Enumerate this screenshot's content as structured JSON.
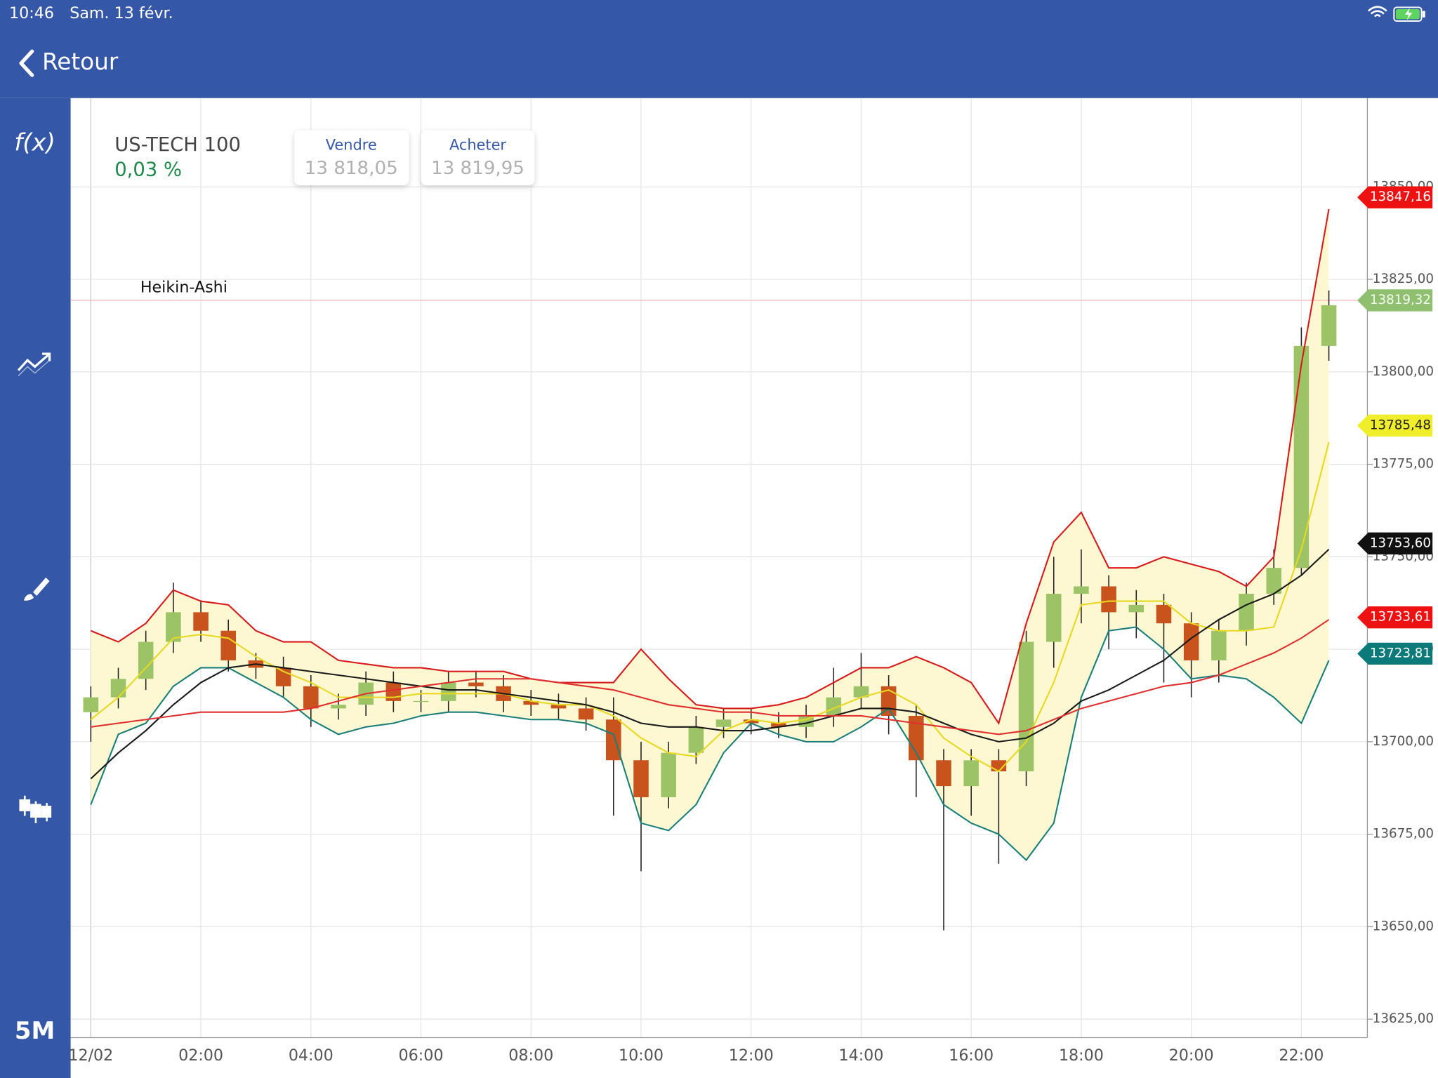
{
  "status_bar": {
    "time": "10:46",
    "date": "Sam. 13 févr."
  },
  "nav": {
    "back": "Retour"
  },
  "sidebar": {
    "function": "f(x)",
    "timeframe": "5M"
  },
  "instrument": {
    "name": "US-TECH 100",
    "change": "0,03 %"
  },
  "quotes": {
    "sell": {
      "label": "Vendre",
      "price": "13 818,05"
    },
    "buy": {
      "label": "Acheter",
      "price": "13 819,95"
    }
  },
  "chart_data": {
    "type": "candlestick",
    "annotation": "Heikin-Ashi",
    "up_color": "#9cc466",
    "down_color": "#c9531c",
    "band_color": "#fdf8d2",
    "grid": true,
    "xlim": [
      -0.367,
      23.2
    ],
    "ylim": [
      13620,
      13874
    ],
    "xticks": [
      {
        "value": 0,
        "label": "12/02"
      },
      {
        "value": 2,
        "label": "02:00"
      },
      {
        "value": 4,
        "label": "04:00"
      },
      {
        "value": 6,
        "label": "06:00"
      },
      {
        "value": 8,
        "label": "08:00"
      },
      {
        "value": 10,
        "label": "10:00"
      },
      {
        "value": 12,
        "label": "12:00"
      },
      {
        "value": 14,
        "label": "14:00"
      },
      {
        "value": 16,
        "label": "16:00"
      },
      {
        "value": 18,
        "label": "18:00"
      },
      {
        "value": 20,
        "label": "20:00"
      },
      {
        "value": 22,
        "label": "22:00"
      }
    ],
    "yticks": [
      {
        "value": 13625,
        "label": "13625,00"
      },
      {
        "value": 13650,
        "label": "13650,00"
      },
      {
        "value": 13675,
        "label": "13675,00"
      },
      {
        "value": 13700,
        "label": "13700,00"
      },
      {
        "value": 13725,
        "label": "13725,00"
      },
      {
        "value": 13750,
        "label": "13750,00"
      },
      {
        "value": 13775,
        "label": "13775,00"
      },
      {
        "value": 13800,
        "label": "13800,00"
      },
      {
        "value": 13825,
        "label": "13825,00"
      },
      {
        "value": 13850,
        "label": "13850,00"
      }
    ],
    "x": [
      0,
      0.5,
      1,
      1.5,
      2,
      2.5,
      3,
      3.5,
      4,
      4.5,
      5,
      5.5,
      6,
      6.5,
      7,
      7.5,
      8,
      8.5,
      9,
      9.5,
      10,
      10.5,
      11,
      11.5,
      12,
      12.5,
      13,
      13.5,
      14,
      14.5,
      15,
      15.5,
      16,
      16.5,
      17,
      17.5,
      18,
      18.5,
      19,
      19.5,
      20,
      20.5,
      21,
      21.5,
      22,
      22.5
    ],
    "open": [
      13708,
      13712,
      13717,
      13727,
      13735,
      13730,
      13722,
      13720,
      13715,
      13709,
      13710,
      13716,
      13711,
      13711,
      13716,
      13715,
      13711,
      13710,
      13709,
      13706,
      13695,
      13685,
      13697,
      13704,
      13706,
      13705,
      13704,
      13707,
      13712,
      13715,
      13707,
      13695,
      13688,
      13695,
      13692,
      13727,
      13740,
      13742,
      13735,
      13737,
      13732,
      13722,
      13730,
      13740,
      13747,
      13807
    ],
    "high": [
      13715,
      13720,
      13730,
      13743,
      13738,
      13733,
      13724,
      13723,
      13718,
      13713,
      13719,
      13719,
      13714,
      13719,
      13719,
      13718,
      13714,
      13713,
      13712,
      13712,
      13700,
      13700,
      13707,
      13709,
      13709,
      13708,
      13710,
      13720,
      13724,
      13718,
      13710,
      13698,
      13698,
      13698,
      13730,
      13750,
      13752,
      13745,
      13741,
      13740,
      13735,
      13733,
      13743,
      13752,
      13812,
      13822
    ],
    "low": [
      13700,
      13709,
      13714,
      13724,
      13727,
      13719,
      13717,
      13712,
      13704,
      13706,
      13707,
      13708,
      13708,
      13708,
      13712,
      13708,
      13707,
      13706,
      13703,
      13680,
      13665,
      13682,
      13694,
      13701,
      13702,
      13701,
      13701,
      13704,
      13709,
      13702,
      13685,
      13649,
      13680,
      13667,
      13688,
      13720,
      13732,
      13725,
      13728,
      13716,
      13712,
      13716,
      13726,
      13737,
      13745,
      13803
    ],
    "close": [
      13712,
      13717,
      13727,
      13735,
      13730,
      13722,
      13720,
      13715,
      13709,
      13710,
      13716,
      13711,
      13711,
      13716,
      13715,
      13711,
      13710,
      13709,
      13706,
      13695,
      13685,
      13697,
      13704,
      13706,
      13705,
      13704,
      13707,
      13712,
      13715,
      13707,
      13695,
      13688,
      13695,
      13692,
      13727,
      13740,
      13742,
      13735,
      13737,
      13732,
      13722,
      13730,
      13740,
      13747,
      13807,
      13818
    ],
    "series": [
      {
        "color": "#d91a1a",
        "values": [
          13730,
          13727,
          13732,
          13741,
          13738,
          13737,
          13730,
          13727,
          13727,
          13722,
          13721,
          13720,
          13720,
          13719,
          13719,
          13719,
          13717,
          13716,
          13716,
          13716,
          13725,
          13717,
          13710,
          13709,
          13709,
          13710,
          13712,
          13716,
          13720,
          13720,
          13723,
          13720,
          13716,
          13705,
          13732,
          13754,
          13762,
          13747,
          13747,
          13750,
          13748,
          13746,
          13742,
          13750,
          13802,
          13844
        ]
      },
      {
        "color": "#1a7f7a",
        "values": [
          13683,
          13702,
          13705,
          13715,
          13720,
          13720,
          13716,
          13712,
          13706,
          13702,
          13704,
          13705,
          13707,
          13708,
          13708,
          13707,
          13706,
          13706,
          13705,
          13702,
          13678,
          13676,
          13683,
          13697,
          13705,
          13702,
          13700,
          13700,
          13704,
          13709,
          13697,
          13683,
          13678,
          13675,
          13668,
          13678,
          13712,
          13730,
          13731,
          13725,
          13717,
          13718,
          13717,
          13712,
          13705,
          13722
        ]
      },
      {
        "color": "#e8d820",
        "values": [
          13706,
          13712,
          13720,
          13728,
          13729,
          13728,
          13723,
          13719,
          13716,
          13712,
          13712,
          13712,
          13713,
          13713,
          13713,
          13713,
          13711,
          13710,
          13710,
          13707,
          13701,
          13697,
          13696,
          13703,
          13706,
          13705,
          13706,
          13709,
          13712,
          13714,
          13710,
          13701,
          13696,
          13692,
          13700,
          13716,
          13737,
          13738,
          13738,
          13738,
          13732,
          13730,
          13730,
          13731,
          13752,
          13781
        ]
      },
      {
        "color": "#1a1a1a",
        "values": [
          13690,
          13697,
          13703,
          13710,
          13716,
          13720,
          13721,
          13720,
          13719,
          13718,
          13717,
          13716,
          13715,
          13714,
          13714,
          13713,
          13712,
          13711,
          13710,
          13708,
          13705,
          13704,
          13704,
          13703,
          13703,
          13704,
          13705,
          13707,
          13709,
          13709,
          13708,
          13705,
          13702,
          13700,
          13701,
          13705,
          13711,
          13714,
          13718,
          13722,
          13728,
          13733,
          13737,
          13740,
          13745,
          13752
        ]
      },
      {
        "color": "#e03030",
        "values": [
          13704,
          13705,
          13706,
          13707,
          13708,
          13708,
          13708,
          13708,
          13709,
          13711,
          13713,
          13714,
          13715,
          13716,
          13717,
          13717,
          13717,
          13716,
          13715,
          13714,
          13712,
          13710,
          13709,
          13708,
          13708,
          13707,
          13707,
          13707,
          13707,
          13706,
          13705,
          13704,
          13703,
          13702,
          13703,
          13706,
          13709,
          13711,
          13713,
          13715,
          13716,
          13718,
          13721,
          13724,
          13728,
          13733
        ]
      }
    ],
    "price_tags": [
      {
        "value": 13847.16,
        "label": "13847,16",
        "color": "#ee1111",
        "text_color": "#ffffff"
      },
      {
        "value": 13819.32,
        "label": "13819,32",
        "color": "#8fc070",
        "text_color": "#f4f9ee"
      },
      {
        "value": 13785.48,
        "label": "13785,48",
        "color": "#f0ee2a",
        "text_color": "#222222"
      },
      {
        "value": 13753.6,
        "label": "13753,60",
        "color": "#111111",
        "text_color": "#ffffff"
      },
      {
        "value": 13733.61,
        "label": "13733,61",
        "color": "#ee1111",
        "text_color": "#ffffff"
      },
      {
        "value": 13723.81,
        "label": "13723,81",
        "color": "#0d7a7a",
        "text_color": "#ffffff"
      }
    ],
    "last_price_line": {
      "value": 13819.32,
      "color": "#f5b8c0"
    }
  }
}
